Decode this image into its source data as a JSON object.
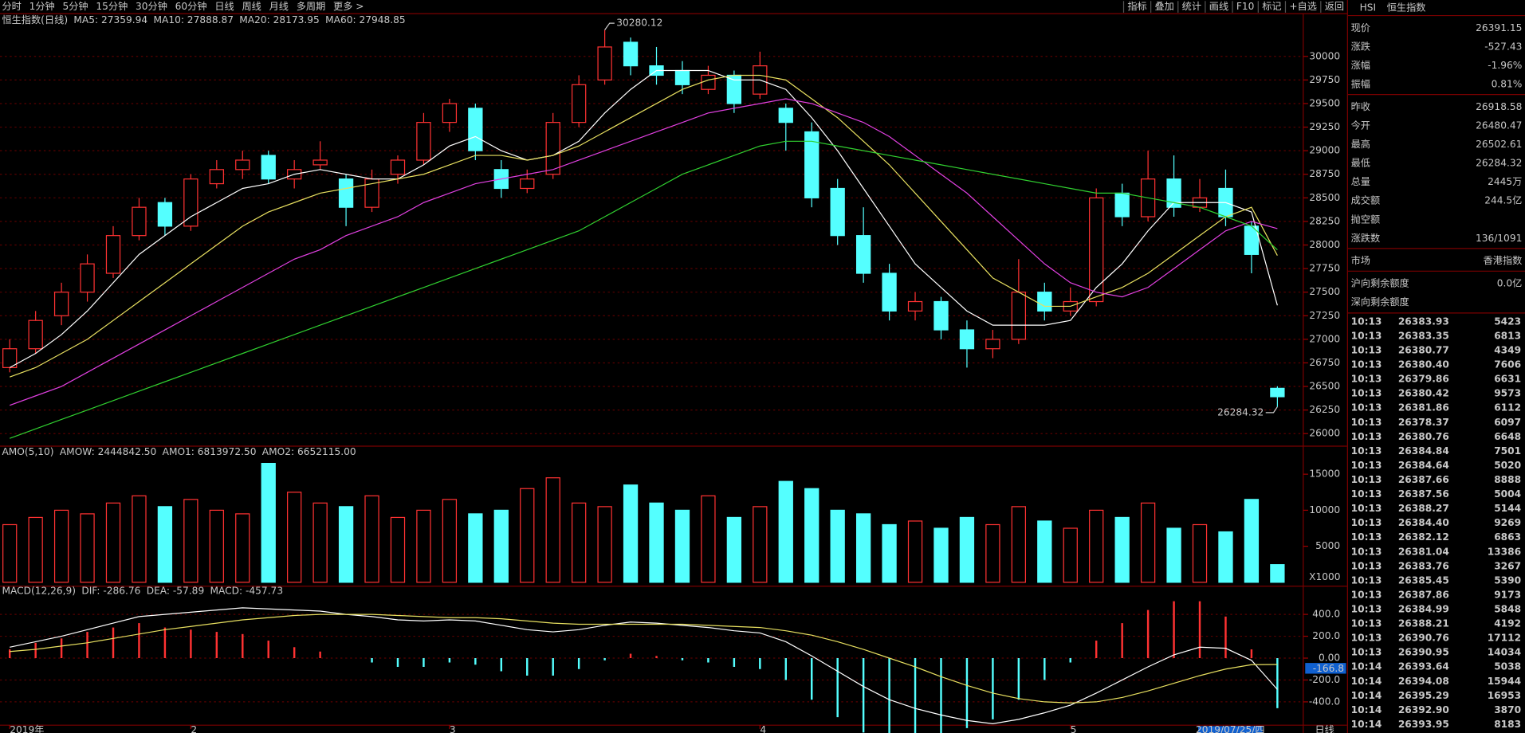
{
  "ui": {
    "menu": [
      "分时",
      "1分钟",
      "5分钟",
      "15分钟",
      "30分钟",
      "60分钟",
      "日线",
      "周线",
      "月线",
      "多周期",
      "更多 >"
    ],
    "menu_right": [
      "指标",
      "叠加",
      "统计",
      "画线",
      "F10",
      "标记",
      "+自选",
      "返回"
    ],
    "symbol_code": "HSI",
    "symbol_name": "恒生指数",
    "quote": [
      {
        "label": "现价",
        "value": "26391.15",
        "color": "#00e600"
      },
      {
        "label": "涨跌",
        "value": "-527.43",
        "color": "#00e600"
      },
      {
        "label": "涨幅",
        "value": "-1.96%",
        "color": "#00e600"
      },
      {
        "label": "振幅",
        "value": "0.81%",
        "color": "#ff3232"
      },
      {
        "label": "昨收",
        "value": "26918.58",
        "color": "#e0e0e0"
      },
      {
        "label": "今开",
        "value": "26480.47",
        "color": "#00e600"
      },
      {
        "label": "最高",
        "value": "26502.61",
        "color": "#00e600"
      },
      {
        "label": "最低",
        "value": "26284.32",
        "color": "#00e600"
      },
      {
        "label": "总量",
        "value": "2445万",
        "color": "#ffff40"
      },
      {
        "label": "成交额",
        "value": "244.5亿",
        "color": "#40d0ff"
      },
      {
        "label": "抛空额",
        "value": null,
        "color": "#e0e0e0"
      },
      {
        "label": "涨跌数",
        "value": "136/1091",
        "color": "#e0e0e0"
      },
      {
        "label": "市场",
        "value": "香港指数",
        "color": "#e0e0e0"
      },
      {
        "label": "沪向剩余额度",
        "value": "0.0亿",
        "color": "#ffff40"
      },
      {
        "label": "深向剩余额度",
        "value": null,
        "color": "#ffff40"
      }
    ],
    "ticks_list": [
      [
        "10:13",
        "26383.93",
        "5423"
      ],
      [
        "10:13",
        "26383.35",
        "6813"
      ],
      [
        "10:13",
        "26380.77",
        "4349"
      ],
      [
        "10:13",
        "26380.40",
        "7606"
      ],
      [
        "10:13",
        "26379.86",
        "6631"
      ],
      [
        "10:13",
        "26380.42",
        "9573"
      ],
      [
        "10:13",
        "26381.86",
        "6112"
      ],
      [
        "10:13",
        "26378.37",
        "6097"
      ],
      [
        "10:13",
        "26380.76",
        "6648"
      ],
      [
        "10:13",
        "26384.84",
        "7501"
      ],
      [
        "10:13",
        "26384.64",
        "5020"
      ],
      [
        "10:13",
        "26387.66",
        "8888"
      ],
      [
        "10:13",
        "26387.56",
        "5004"
      ],
      [
        "10:13",
        "26388.27",
        "5144"
      ],
      [
        "10:13",
        "26384.40",
        "9269"
      ],
      [
        "10:13",
        "26382.12",
        "6863"
      ],
      [
        "10:13",
        "26381.04",
        "13386"
      ],
      [
        "10:13",
        "26383.76",
        "3267"
      ],
      [
        "10:13",
        "26385.45",
        "5390"
      ],
      [
        "10:13",
        "26387.86",
        "9173"
      ],
      [
        "10:13",
        "26384.99",
        "5848"
      ],
      [
        "10:13",
        "26388.21",
        "4192"
      ],
      [
        "10:13",
        "26390.76",
        "17112"
      ],
      [
        "10:13",
        "26390.95",
        "14034"
      ],
      [
        "10:14",
        "26393.64",
        "5038"
      ],
      [
        "10:14",
        "26394.08",
        "15944"
      ],
      [
        "10:14",
        "26395.29",
        "16953"
      ],
      [
        "10:14",
        "26392.90",
        "3870"
      ],
      [
        "10:14",
        "26393.95",
        "8183"
      ]
    ],
    "macd_cursor": "-166.8",
    "volume_unit": "X1000",
    "date_cursor": "2019/07/25/四",
    "period_label": "日线"
  },
  "chart_data": [
    {
      "type": "candlestick",
      "title": "恒生指数(日线)",
      "up_color": "#ff3232",
      "down_color": "#54ffff",
      "candles": [
        [
          26700,
          27000,
          26650,
          26900
        ],
        [
          26900,
          27300,
          26850,
          27200
        ],
        [
          27250,
          27600,
          27150,
          27500
        ],
        [
          27500,
          27900,
          27400,
          27800
        ],
        [
          27700,
          28200,
          27650,
          28100
        ],
        [
          28100,
          28500,
          28050,
          28400
        ],
        [
          28450,
          28500,
          28100,
          28200
        ],
        [
          28200,
          28750,
          28150,
          28700
        ],
        [
          28650,
          28900,
          28600,
          28800
        ],
        [
          28800,
          29000,
          28700,
          28900
        ],
        [
          28950,
          29000,
          28650,
          28700
        ],
        [
          28700,
          28900,
          28600,
          28800
        ],
        [
          28850,
          29100,
          28800,
          28900
        ],
        [
          28700,
          28750,
          28200,
          28400
        ],
        [
          28400,
          28800,
          28350,
          28700
        ],
        [
          28750,
          28950,
          28650,
          28900
        ],
        [
          28900,
          29400,
          28850,
          29300
        ],
        [
          29300,
          29550,
          29200,
          29500
        ],
        [
          29450,
          29500,
          28900,
          29000
        ],
        [
          28800,
          28900,
          28500,
          28600
        ],
        [
          28600,
          28800,
          28550,
          28700
        ],
        [
          28750,
          29400,
          28700,
          29300
        ],
        [
          29300,
          29800,
          29250,
          29700
        ],
        [
          29750,
          30280.12,
          29700,
          30100
        ],
        [
          30150,
          30200,
          29800,
          29900
        ],
        [
          29900,
          30100,
          29700,
          29800
        ],
        [
          29850,
          29950,
          29600,
          29700
        ],
        [
          29650,
          29900,
          29600,
          29800
        ],
        [
          29800,
          29850,
          29400,
          29500
        ],
        [
          29600,
          30050,
          29550,
          29900
        ],
        [
          29450,
          29500,
          29000,
          29300
        ],
        [
          29200,
          29300,
          28400,
          28500
        ],
        [
          28600,
          28700,
          28000,
          28100
        ],
        [
          28100,
          28400,
          27600,
          27700
        ],
        [
          27700,
          27800,
          27200,
          27300
        ],
        [
          27300,
          27500,
          27200,
          27400
        ],
        [
          27400,
          27450,
          27000,
          27100
        ],
        [
          27100,
          27200,
          26700,
          26900
        ],
        [
          26900,
          27100,
          26800,
          27000
        ],
        [
          27000,
          27850,
          26950,
          27500
        ],
        [
          27500,
          27600,
          27200,
          27300
        ],
        [
          27300,
          27550,
          27250,
          27400
        ],
        [
          27400,
          28600,
          27350,
          28500
        ],
        [
          28550,
          28650,
          28200,
          28300
        ],
        [
          28300,
          29000,
          28250,
          28700
        ],
        [
          28700,
          28950,
          28300,
          28400
        ],
        [
          28400,
          28700,
          28350,
          28500
        ],
        [
          28600,
          28800,
          28200,
          28300
        ],
        [
          28200,
          28250,
          27700,
          27900
        ],
        [
          26480.47,
          26502.61,
          26284.32,
          26391.15
        ]
      ],
      "series": [
        {
          "name": "MA5: 27359.94",
          "color": "#ffffff",
          "values": [
            26700,
            26850,
            27050,
            27300,
            27600,
            27900,
            28100,
            28300,
            28450,
            28600,
            28650,
            28750,
            28800,
            28750,
            28700,
            28700,
            28850,
            29050,
            29150,
            29000,
            28900,
            28950,
            29100,
            29400,
            29650,
            29850,
            29850,
            29850,
            29750,
            29750,
            29650,
            29350,
            29000,
            28600,
            28200,
            27800,
            27550,
            27300,
            27150,
            27150,
            27150,
            27200,
            27550,
            27800,
            28150,
            28450,
            28450,
            28450,
            28350,
            27359.94
          ]
        },
        {
          "name": "MA10: 27888.87",
          "color": "#e8e060",
          "values": [
            26600,
            26700,
            26850,
            27000,
            27200,
            27400,
            27600,
            27800,
            28000,
            28200,
            28350,
            28450,
            28550,
            28600,
            28650,
            28700,
            28750,
            28850,
            28950,
            28950,
            28900,
            28950,
            29050,
            29200,
            29350,
            29500,
            29650,
            29750,
            29800,
            29800,
            29750,
            29550,
            29350,
            29100,
            28850,
            28550,
            28250,
            27950,
            27650,
            27500,
            27350,
            27350,
            27450,
            27550,
            27700,
            27900,
            28100,
            28300,
            28400,
            27888.87
          ]
        },
        {
          "name": "MA20: 28173.95",
          "color": "#e040e0",
          "values": [
            26300,
            26400,
            26500,
            26650,
            26800,
            26950,
            27100,
            27250,
            27400,
            27550,
            27700,
            27850,
            27950,
            28100,
            28200,
            28300,
            28450,
            28550,
            28650,
            28700,
            28750,
            28800,
            28900,
            29000,
            29100,
            29200,
            29300,
            29400,
            29450,
            29500,
            29550,
            29500,
            29400,
            29300,
            29150,
            28950,
            28750,
            28550,
            28300,
            28050,
            27800,
            27600,
            27500,
            27450,
            27550,
            27750,
            27950,
            28150,
            28250,
            28173.95
          ]
        },
        {
          "name": "MA60: 27948.85",
          "color": "#30d030",
          "values": [
            25950,
            26050,
            26150,
            26250,
            26350,
            26450,
            26550,
            26650,
            26750,
            26850,
            26950,
            27050,
            27150,
            27250,
            27350,
            27450,
            27550,
            27650,
            27750,
            27850,
            27950,
            28050,
            28150,
            28300,
            28450,
            28600,
            28750,
            28850,
            28950,
            29050,
            29100,
            29100,
            29050,
            29000,
            28950,
            28900,
            28850,
            28800,
            28750,
            28700,
            28650,
            28600,
            28550,
            28550,
            28500,
            28450,
            28400,
            28300,
            28200,
            27948.85
          ]
        }
      ],
      "annotations": [
        {
          "label": "30280.12",
          "candle": 23
        },
        {
          "label": "26284.32",
          "candle": 49
        }
      ],
      "ylim": [
        25887,
        30443
      ],
      "yticks": [
        26000,
        26250,
        26500,
        26750,
        27000,
        27250,
        27500,
        27750,
        28000,
        28250,
        28500,
        28750,
        29000,
        29250,
        29500,
        29750,
        30000
      ],
      "grid": true,
      "xticks": [
        {
          "value": 0,
          "label": "2019年"
        },
        {
          "value": 7,
          "label": "2"
        },
        {
          "value": 17,
          "label": "3"
        },
        {
          "value": 29,
          "label": "4"
        },
        {
          "value": 41,
          "label": "5"
        }
      ]
    },
    {
      "type": "bar",
      "title": "AMO(5,10)",
      "stats": [
        "AMOW: 2444842.50",
        "AMO1: 6813972.50",
        "AMO2: 6652115.00"
      ],
      "values": [
        8000,
        9000,
        10000,
        9500,
        11000,
        12000,
        10500,
        11500,
        10000,
        9500,
        16500,
        12500,
        11000,
        10500,
        12000,
        9000,
        10000,
        11500,
        9500,
        10000,
        13000,
        14500,
        11000,
        10500,
        13500,
        11000,
        10000,
        12000,
        9000,
        10500,
        14000,
        13000,
        10000,
        9500,
        8000,
        8500,
        7500,
        9000,
        8000,
        10500,
        8500,
        7500,
        10000,
        9000,
        11000,
        7500,
        8000,
        7000,
        11500,
        2450
      ],
      "ylim": [
        0,
        17400
      ],
      "yticks": [
        5000,
        10000,
        15000
      ]
    },
    {
      "type": "macd",
      "title": "MACD(12,26,9)",
      "series": [
        {
          "name": "DIF: -286.76",
          "color": "#ffffff",
          "values": [
            100,
            150,
            200,
            260,
            320,
            380,
            400,
            420,
            440,
            460,
            450,
            440,
            430,
            400,
            380,
            350,
            340,
            350,
            340,
            300,
            260,
            240,
            260,
            300,
            330,
            320,
            300,
            280,
            250,
            230,
            150,
            20,
            -120,
            -260,
            -380,
            -460,
            -520,
            -570,
            -600,
            -560,
            -500,
            -430,
            -320,
            -200,
            -80,
            30,
            100,
            90,
            -20,
            -286.76
          ]
        },
        {
          "name": "DEA: -57.89",
          "color": "#e8e060",
          "values": [
            60,
            80,
            110,
            140,
            180,
            220,
            260,
            290,
            320,
            350,
            370,
            390,
            400,
            400,
            400,
            390,
            380,
            370,
            370,
            360,
            340,
            320,
            310,
            310,
            310,
            310,
            310,
            300,
            290,
            280,
            250,
            210,
            150,
            80,
            0,
            -80,
            -170,
            -250,
            -320,
            -370,
            -400,
            -410,
            -400,
            -360,
            -300,
            -230,
            -160,
            -100,
            -60,
            -57.89
          ]
        },
        {
          "name": "MACD: -457.73",
          "color": "#e040e0",
          "values": [
            80,
            140,
            180,
            240,
            280,
            320,
            280,
            260,
            240,
            220,
            160,
            100,
            60,
            0,
            -40,
            -80,
            -80,
            -40,
            -60,
            -120,
            -160,
            -160,
            -100,
            -20,
            40,
            20,
            -20,
            -40,
            -80,
            -100,
            -200,
            -380,
            -540,
            -680,
            -760,
            -760,
            -700,
            -640,
            -560,
            -380,
            -200,
            -40,
            160,
            320,
            440,
            520,
            520,
            380,
            80,
            -457.73
          ]
        }
      ],
      "ylim": [
        -631,
        560
      ],
      "yticks": [
        {
          "value": -400,
          "label": "-400.0"
        },
        {
          "value": -200,
          "label": "-200.0"
        },
        {
          "value": 0,
          "label": "0.00"
        },
        {
          "value": 200,
          "label": "200.0"
        },
        {
          "value": 400,
          "label": "400.0"
        }
      ]
    }
  ]
}
